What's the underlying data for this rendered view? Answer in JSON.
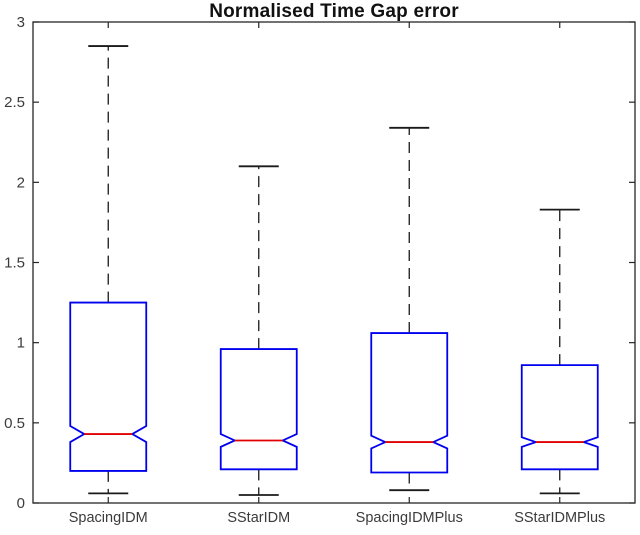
{
  "colors": {
    "box": "#0000ee",
    "median": "#e00000",
    "whisker": "#1a1a1a",
    "axis": "#262626",
    "label": "#3b3b3b",
    "background": "#ffffff"
  },
  "chart_data": {
    "type": "boxplot",
    "title": "Normalised Time Gap error",
    "notched": true,
    "grid": false,
    "xlabel": "",
    "ylabel": "",
    "ylim": [
      0,
      3
    ],
    "yticks": [
      0,
      0.5,
      1,
      1.5,
      2,
      2.5,
      3
    ],
    "categories": [
      "SpacingIDM",
      "SStarIDM",
      "SpacingIDMPlus",
      "SStarIDMPlus"
    ],
    "series": [
      {
        "label": "SpacingIDM",
        "whisker_low": 0.06,
        "q1": 0.2,
        "median": 0.43,
        "q3": 1.25,
        "whisker_high": 2.85,
        "notch_low": 0.38,
        "notch_high": 0.48
      },
      {
        "label": "SStarIDM",
        "whisker_low": 0.05,
        "q1": 0.21,
        "median": 0.39,
        "q3": 0.96,
        "whisker_high": 2.1,
        "notch_low": 0.35,
        "notch_high": 0.43
      },
      {
        "label": "SpacingIDMPlus",
        "whisker_low": 0.08,
        "q1": 0.19,
        "median": 0.38,
        "q3": 1.06,
        "whisker_high": 2.34,
        "notch_low": 0.34,
        "notch_high": 0.42
      },
      {
        "label": "SStarIDMPlus",
        "whisker_low": 0.06,
        "q1": 0.21,
        "median": 0.38,
        "q3": 0.86,
        "whisker_high": 1.83,
        "notch_low": 0.35,
        "notch_high": 0.41
      }
    ]
  }
}
